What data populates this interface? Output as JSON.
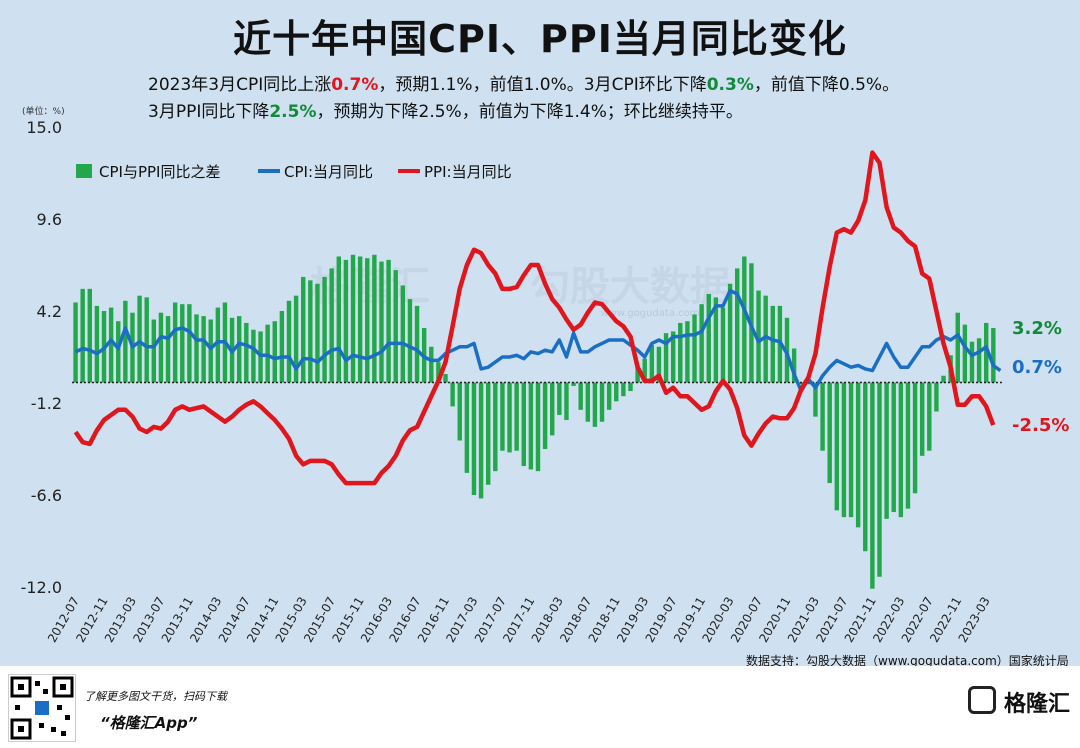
{
  "title": "近十年中国CPI、PPI当月同比变化",
  "subtitle1": {
    "a": "2023年3月CPI同比上涨",
    "b": "0.7%",
    "c": "，预期1.1%，前值1.0%。3月CPI环比下降",
    "d": "0.3%",
    "e": "，前值下降0.5%。"
  },
  "subtitle2": {
    "a": "3月PPI同比下降",
    "b": "2.5%",
    "c": "，预期为下降2.5%，前值为下降1.4%；环比继续持平。"
  },
  "colors": {
    "bar": "#22a84a",
    "cpi": "#1a6fc4",
    "ppi": "#e0161c",
    "end_green": "#13893a"
  },
  "footer": {
    "source": "数据支持：勾股大数据（www.gogudata.com）国家统计局",
    "promo1": "了解更多图文干货，扫码下载",
    "promo2": "“格隆汇App”",
    "brand": "格隆汇"
  },
  "watermark": {
    "text1": "格隆汇",
    "text2": "勾股大数据",
    "url": "www.gogudata.com"
  },
  "chart_data": {
    "type": "bar+line",
    "unit_label": "(单位：%)",
    "ylim": [
      -12.0,
      15.0
    ],
    "yticks": [
      "15.0",
      "9.6",
      "4.2",
      "-1.2",
      "-6.6",
      "-12.0"
    ],
    "ytick_values": [
      15.0,
      9.6,
      4.2,
      -1.2,
      -6.6,
      -12.0
    ],
    "start": "2012-07",
    "x_tick_labels": [
      "2012-07",
      "2012-11",
      "2013-03",
      "2013-07",
      "2013-11",
      "2014-03",
      "2014-07",
      "2014-11",
      "2015-03",
      "2015-07",
      "2015-11",
      "2016-03",
      "2016-07",
      "2016-11",
      "2017-03",
      "2017-07",
      "2017-11",
      "2018-03",
      "2018-07",
      "2018-11",
      "2019-03",
      "2019-07",
      "2019-11",
      "2020-03",
      "2020-07",
      "2020-11",
      "2021-03",
      "2021-07",
      "2021-11",
      "2022-03",
      "2022-07",
      "2022-11",
      "2023-03"
    ],
    "legend": [
      "CPI与PPI同比之差",
      "CPI:当月同比",
      "PPI:当月同比"
    ],
    "end_labels": {
      "diff": "3.2%",
      "cpi": "0.7%",
      "ppi": "-2.5%"
    },
    "series": [
      {
        "name": "CPI:当月同比",
        "values": [
          1.8,
          2.0,
          1.9,
          1.7,
          2.0,
          2.5,
          2.0,
          3.2,
          2.1,
          2.4,
          2.1,
          2.1,
          2.7,
          2.6,
          3.1,
          3.2,
          3.0,
          2.5,
          2.5,
          2.0,
          2.4,
          2.4,
          1.8,
          2.3,
          2.2,
          2.0,
          1.6,
          1.6,
          1.4,
          1.5,
          1.5,
          0.8,
          1.4,
          1.4,
          1.2,
          1.6,
          1.9,
          2.0,
          1.3,
          1.6,
          1.5,
          1.4,
          1.6,
          1.8,
          2.3,
          2.3,
          2.3,
          2.1,
          1.9,
          1.5,
          1.3,
          1.3,
          1.7,
          1.9,
          2.1,
          2.1,
          2.3,
          0.8,
          0.9,
          1.2,
          1.5,
          1.5,
          1.6,
          1.4,
          1.8,
          1.7,
          1.9,
          1.8,
          2.5,
          1.5,
          2.9,
          1.8,
          1.8,
          2.1,
          2.3,
          2.5,
          2.5,
          2.5,
          2.2,
          1.9,
          1.5,
          2.3,
          2.5,
          2.3,
          2.7,
          2.7,
          2.8,
          2.8,
          3.0,
          3.8,
          4.5,
          4.5,
          5.4,
          5.2,
          4.3,
          3.3,
          2.4,
          2.7,
          2.5,
          2.4,
          1.7,
          0.5,
          -0.5,
          0.2,
          -0.3,
          0.4,
          0.9,
          1.3,
          1.1,
          0.9,
          1.0,
          0.8,
          0.7,
          1.5,
          2.3,
          1.5,
          0.9,
          0.9,
          1.5,
          2.1,
          2.1,
          2.5,
          2.7,
          2.5,
          2.8,
          2.1,
          1.6,
          1.8,
          2.1,
          1.0,
          0.7
        ]
      },
      {
        "name": "PPI:当月同比",
        "values": [
          -2.9,
          -3.5,
          -3.6,
          -2.8,
          -2.2,
          -1.9,
          -1.6,
          -1.6,
          -2.0,
          -2.7,
          -2.9,
          -2.6,
          -2.7,
          -2.3,
          -1.6,
          -1.4,
          -1.6,
          -1.5,
          -1.4,
          -1.7,
          -2.0,
          -2.3,
          -2.0,
          -1.6,
          -1.3,
          -1.1,
          -1.4,
          -1.8,
          -2.2,
          -2.7,
          -3.3,
          -4.3,
          -4.8,
          -4.6,
          -4.6,
          -4.6,
          -4.8,
          -5.4,
          -5.9,
          -5.9,
          -5.9,
          -5.9,
          -5.9,
          -5.3,
          -4.9,
          -4.3,
          -3.4,
          -2.8,
          -2.6,
          -1.7,
          -0.8,
          0.1,
          1.2,
          3.3,
          5.5,
          6.9,
          7.8,
          7.6,
          6.9,
          6.4,
          5.5,
          5.5,
          5.6,
          6.3,
          6.9,
          6.9,
          5.8,
          4.9,
          4.4,
          3.7,
          3.1,
          3.4,
          4.1,
          4.7,
          4.6,
          4.1,
          3.6,
          3.3,
          2.7,
          0.9,
          0.1,
          0.1,
          0.4,
          -0.6,
          -0.3,
          -0.8,
          -0.8,
          -1.2,
          -1.6,
          -1.4,
          -0.5,
          0.1,
          -0.4,
          -1.5,
          -3.1,
          -3.7,
          -3.0,
          -2.4,
          -2.0,
          -2.1,
          -2.1,
          -1.5,
          -0.4,
          0.3,
          1.7,
          4.4,
          6.8,
          8.8,
          9.0,
          8.8,
          9.5,
          10.7,
          13.5,
          12.9,
          10.3,
          9.1,
          8.8,
          8.3,
          8.0,
          6.4,
          6.1,
          4.2,
          2.3,
          0.9,
          -1.3,
          -1.3,
          -0.8,
          -0.8,
          -1.4,
          -2.5
        ]
      },
      {
        "name": "CPI与PPI同比之差",
        "values": [
          4.7,
          5.5,
          5.5,
          4.5,
          4.2,
          4.4,
          3.6,
          4.8,
          4.1,
          5.1,
          5.0,
          3.7,
          4.1,
          3.9,
          4.7,
          4.6,
          4.6,
          4.0,
          3.9,
          3.7,
          4.4,
          4.7,
          3.8,
          3.9,
          3.5,
          3.1,
          3.0,
          3.4,
          3.6,
          4.2,
          4.8,
          5.1,
          6.2,
          6.0,
          5.8,
          6.2,
          6.7,
          7.4,
          7.2,
          7.5,
          7.4,
          7.3,
          7.5,
          7.1,
          7.2,
          6.6,
          5.7,
          4.9,
          4.5,
          3.2,
          2.1,
          1.2,
          0.5,
          -1.4,
          -3.4,
          -5.3,
          -6.6,
          -6.8,
          -6.0,
          -5.2,
          -4.0,
          -4.1,
          -4.0,
          -4.9,
          -5.1,
          -5.2,
          -3.9,
          -3.1,
          -1.9,
          -2.2,
          -0.2,
          -1.6,
          -2.3,
          -2.6,
          -2.3,
          -1.6,
          -1.1,
          -0.8,
          -0.5,
          1.0,
          1.4,
          2.2,
          2.1,
          2.9,
          3.0,
          3.5,
          3.6,
          4.0,
          4.6,
          5.2,
          5.0,
          4.4,
          5.8,
          6.7,
          7.4,
          7.0,
          5.4,
          5.1,
          4.5,
          4.5,
          3.8,
          2.0,
          -0.1,
          -0.1,
          -2.0,
          -4.0,
          -5.9,
          -7.5,
          -7.9,
          -7.9,
          -8.5,
          -9.9,
          -12.1,
          -11.4,
          -8.0,
          -7.6,
          -7.9,
          -7.4,
          -6.5,
          -4.3,
          -4.0,
          -1.7,
          0.4,
          1.6,
          4.1,
          3.4,
          2.4,
          2.6,
          3.5,
          3.2
        ]
      }
    ]
  }
}
